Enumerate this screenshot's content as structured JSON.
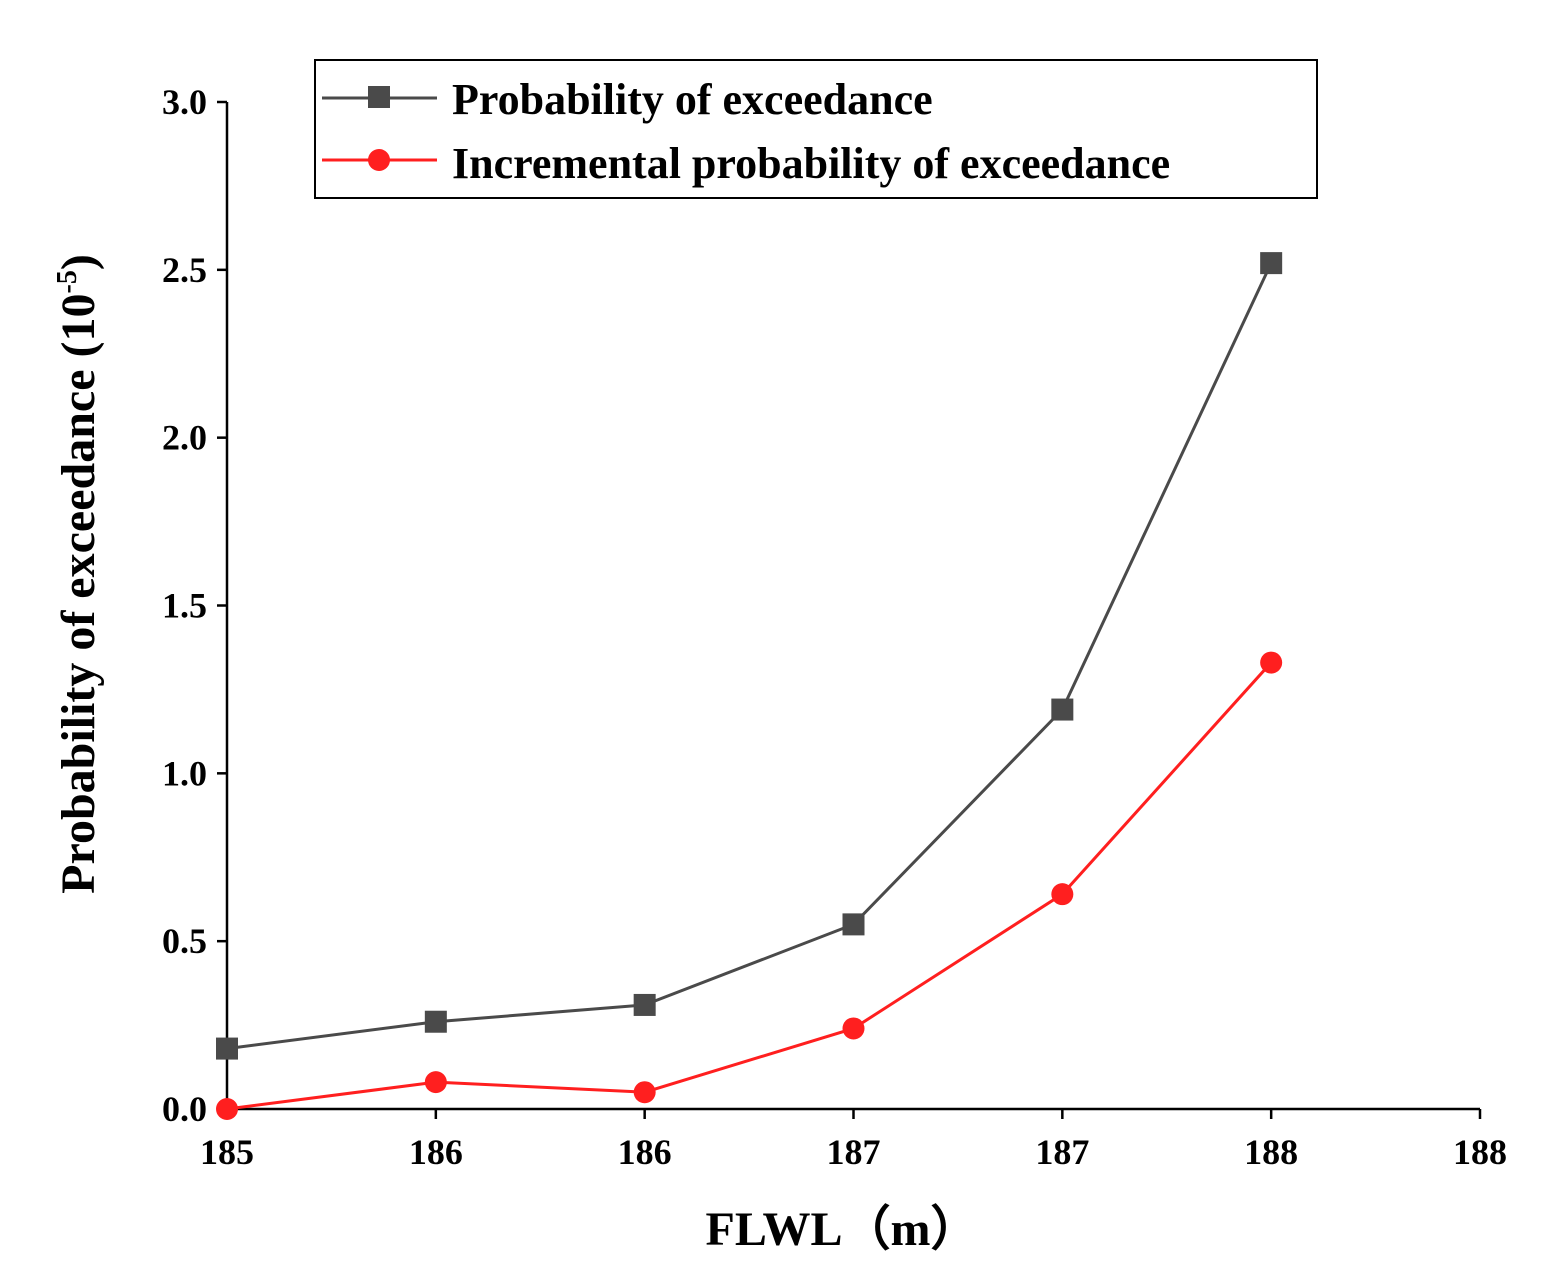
{
  "chart_data": {
    "type": "line",
    "xlabel": "FLWL（m）",
    "ylabel": "Probability of exceedance (10",
    "ylabel_exponent": "-5",
    "ylabel_close": ")",
    "x_tick_labels": [
      "185",
      "186",
      "186",
      "187",
      "187",
      "188",
      "188"
    ],
    "y_tick_labels": [
      "0.0",
      "0.5",
      "1.0",
      "1.5",
      "2.0",
      "2.5",
      "3.0"
    ],
    "y_ticks": [
      0,
      0.5,
      1.0,
      1.5,
      2.0,
      2.5,
      3.0
    ],
    "ylim": [
      0,
      3.0
    ],
    "xlim": [
      0,
      6
    ],
    "x_positions": [
      0,
      1,
      2,
      3,
      4,
      5
    ],
    "legend_position": "top",
    "series": [
      {
        "name": "Probability of exceedance",
        "marker": "square",
        "color": "#4a4a4a",
        "values": [
          0.18,
          0.26,
          0.31,
          0.55,
          1.19,
          2.52
        ]
      },
      {
        "name": "Incremental probability of exceedance",
        "marker": "circle",
        "color": "#ff1f1f",
        "values": [
          0.0,
          0.08,
          0.05,
          0.24,
          0.64,
          1.33
        ]
      }
    ]
  }
}
